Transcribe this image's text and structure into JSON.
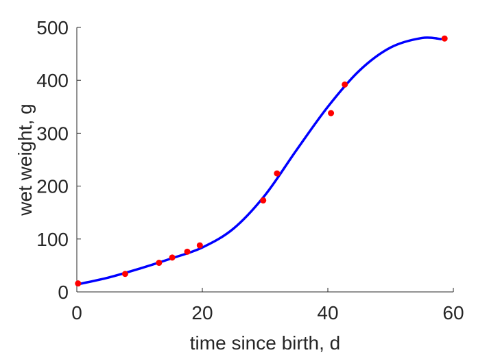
{
  "chart_data": {
    "type": "scatter",
    "xlabel": "time since birth, d",
    "ylabel": "wet weight, g",
    "xlim": [
      0,
      60
    ],
    "ylim": [
      0,
      500
    ],
    "xticks": [
      0,
      20,
      40,
      60
    ],
    "yticks": [
      0,
      100,
      200,
      300,
      400,
      500
    ],
    "grid": false,
    "colors": {
      "points": "#ff0000",
      "fit": "#0000ff",
      "axes": "#262626"
    },
    "series": [
      {
        "kind": "points",
        "x": [
          0.2,
          7.7,
          13.1,
          15.2,
          17.6,
          19.6,
          29.7,
          31.9,
          40.5,
          42.7,
          58.6
        ],
        "y": [
          16,
          34,
          55,
          65,
          76,
          88,
          173,
          224,
          338,
          392,
          479
        ]
      },
      {
        "kind": "line",
        "x": [
          0,
          5,
          10,
          15,
          20,
          25,
          30,
          35,
          40,
          45,
          50,
          55,
          58
        ],
        "y": [
          14,
          27,
          44,
          63,
          84,
          120,
          183,
          268,
          350,
          418,
          462,
          480,
          478
        ]
      }
    ]
  }
}
